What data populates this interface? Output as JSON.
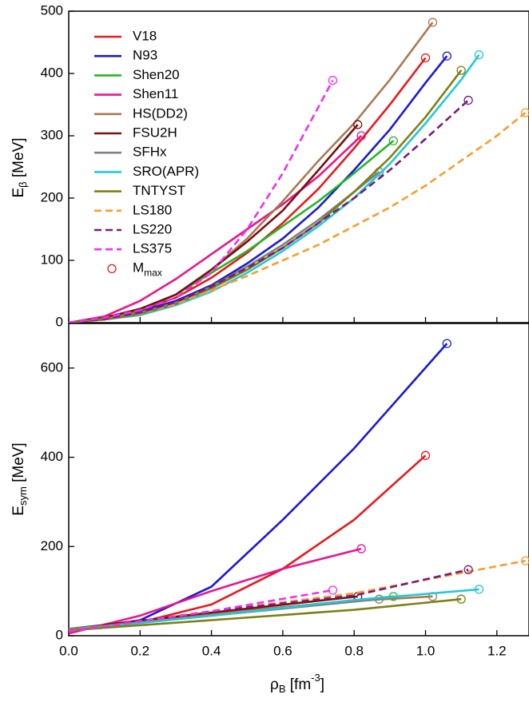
{
  "chart_data": [
    {
      "type": "line",
      "ylabel": "E",
      "ylabel_sub": "β",
      "ylabel_unit": " [MeV]",
      "xlim": [
        0,
        1.29
      ],
      "ylim": [
        0,
        500
      ],
      "yticks": [
        0,
        100,
        200,
        300,
        400,
        500
      ],
      "legend": "upper left",
      "marker_label": "M",
      "marker_label_sub": "max",
      "series": [
        {
          "name": "V18",
          "color": "#e8191b",
          "dashed": false,
          "x": [
            0,
            0.1,
            0.2,
            0.3,
            0.4,
            0.5,
            0.6,
            0.7,
            0.8,
            0.9,
            1.0
          ],
          "values": [
            0,
            8,
            20,
            40,
            72,
            112,
            160,
            215,
            280,
            350,
            425
          ]
        },
        {
          "name": "N93",
          "color": "#1a1ad6",
          "dashed": false,
          "x": [
            0,
            0.1,
            0.2,
            0.3,
            0.4,
            0.5,
            0.6,
            0.7,
            0.8,
            0.9,
            1.0,
            1.06
          ],
          "values": [
            0,
            8,
            18,
            35,
            60,
            95,
            135,
            185,
            245,
            310,
            385,
            428
          ]
        },
        {
          "name": "Shen20",
          "color": "#22b822",
          "dashed": false,
          "x": [
            0,
            0.1,
            0.2,
            0.3,
            0.4,
            0.5,
            0.6,
            0.7,
            0.8,
            0.91
          ],
          "values": [
            0,
            8,
            22,
            45,
            80,
            115,
            155,
            195,
            240,
            292
          ]
        },
        {
          "name": "Shen11",
          "color": "#e8168c",
          "dashed": false,
          "x": [
            0,
            0.1,
            0.2,
            0.3,
            0.4,
            0.5,
            0.6,
            0.7,
            0.82
          ],
          "values": [
            0,
            10,
            35,
            70,
            110,
            150,
            190,
            235,
            300
          ]
        },
        {
          "name": "HS(DD2)",
          "color": "#a87a52",
          "dashed": false,
          "x": [
            0,
            0.1,
            0.2,
            0.3,
            0.4,
            0.5,
            0.6,
            0.7,
            0.8,
            0.9,
            1.02
          ],
          "values": [
            0,
            8,
            20,
            45,
            85,
            135,
            195,
            260,
            320,
            390,
            482
          ]
        },
        {
          "name": "FSU2H",
          "color": "#7a0f0f",
          "dashed": false,
          "x": [
            0,
            0.1,
            0.2,
            0.3,
            0.4,
            0.5,
            0.6,
            0.7,
            0.81
          ],
          "values": [
            0,
            8,
            22,
            45,
            85,
            130,
            180,
            245,
            318
          ]
        },
        {
          "name": "SFHx",
          "color": "#808080",
          "dashed": false,
          "x": [
            0,
            0.1,
            0.2,
            0.3,
            0.4,
            0.5,
            0.6,
            0.7,
            0.8,
            0.87
          ],
          "values": [
            0,
            6,
            16,
            32,
            58,
            90,
            125,
            165,
            210,
            242
          ]
        },
        {
          "name": "SRO(APR)",
          "color": "#22c8d8",
          "dashed": false,
          "x": [
            0,
            0.1,
            0.2,
            0.3,
            0.4,
            0.5,
            0.6,
            0.7,
            0.8,
            0.9,
            1.0,
            1.1,
            1.15
          ],
          "values": [
            0,
            5,
            12,
            28,
            50,
            80,
            115,
            155,
            200,
            255,
            320,
            390,
            430
          ]
        },
        {
          "name": "TNTYST",
          "color": "#7f7f12",
          "dashed": false,
          "x": [
            0,
            0.1,
            0.2,
            0.3,
            0.4,
            0.5,
            0.6,
            0.7,
            0.8,
            0.9,
            1.0,
            1.1
          ],
          "values": [
            0,
            5,
            14,
            30,
            55,
            85,
            120,
            160,
            210,
            265,
            330,
            405
          ]
        },
        {
          "name": "LS180",
          "color": "#ff9a2a",
          "dashed": true,
          "x": [
            0,
            0.1,
            0.2,
            0.3,
            0.4,
            0.5,
            0.6,
            0.7,
            0.8,
            0.9,
            1.0,
            1.1,
            1.2,
            1.28
          ],
          "values": [
            0,
            6,
            15,
            30,
            52,
            75,
            100,
            125,
            155,
            185,
            220,
            260,
            300,
            337
          ]
        },
        {
          "name": "LS220",
          "color": "#7a1a7a",
          "dashed": true,
          "x": [
            0,
            0.1,
            0.2,
            0.3,
            0.4,
            0.5,
            0.6,
            0.7,
            0.8,
            0.9,
            1.0,
            1.12
          ],
          "values": [
            0,
            6,
            16,
            33,
            58,
            88,
            120,
            160,
            200,
            245,
            295,
            357
          ]
        },
        {
          "name": "LS375",
          "color": "#f030f0",
          "dashed": true,
          "x": [
            0,
            0.1,
            0.2,
            0.3,
            0.4,
            0.5,
            0.6,
            0.74
          ],
          "values": [
            0,
            8,
            20,
            40,
            80,
            150,
            240,
            389
          ]
        }
      ]
    },
    {
      "type": "line",
      "ylabel": "E",
      "ylabel_sub": "sym",
      "ylabel_unit": " [MeV]",
      "xlabel": "ρ",
      "xlabel_sub": "B",
      "xlabel_unit": " [fm",
      "xlabel_sup": "-3",
      "xlabel_end": "]",
      "xlim": [
        0,
        1.29
      ],
      "ylim": [
        0,
        700
      ],
      "yticks": [
        0,
        200,
        400,
        600
      ],
      "xticks": [
        {
          "value": 0,
          "label": "0.0"
        },
        0.2,
        0.4,
        0.6,
        0.8,
        {
          "value": 1,
          "label": "1.0"
        },
        1.2
      ],
      "series": [
        {
          "color": "#e8191b",
          "dashed": false,
          "x": [
            0,
            0.2,
            0.4,
            0.6,
            0.8,
            1.0
          ],
          "values": [
            12,
            30,
            70,
            150,
            260,
            404
          ]
        },
        {
          "color": "#1a1ad6",
          "dashed": false,
          "x": [
            0,
            0.2,
            0.4,
            0.6,
            0.8,
            1.06
          ],
          "values": [
            10,
            35,
            110,
            260,
            420,
            655
          ]
        },
        {
          "color": "#22b822",
          "dashed": false,
          "x": [
            0,
            0.4,
            0.91
          ],
          "values": [
            15,
            48,
            88
          ]
        },
        {
          "color": "#e8168c",
          "dashed": false,
          "x": [
            0,
            0.2,
            0.4,
            0.6,
            0.82
          ],
          "values": [
            5,
            45,
            100,
            150,
            195
          ]
        },
        {
          "color": "#a87a52",
          "dashed": false,
          "x": [
            0,
            0.4,
            0.8,
            1.02
          ],
          "values": [
            15,
            50,
            78,
            88
          ]
        },
        {
          "color": "#7a0f0f",
          "dashed": false,
          "x": [
            0,
            0.4,
            0.81
          ],
          "values": [
            15,
            52,
            88
          ]
        },
        {
          "color": "#808080",
          "dashed": false,
          "x": [
            0,
            0.4,
            0.87
          ],
          "values": [
            15,
            45,
            82
          ]
        },
        {
          "color": "#22c8d8",
          "dashed": false,
          "x": [
            0,
            0.4,
            0.8,
            1.15
          ],
          "values": [
            12,
            45,
            80,
            104
          ]
        },
        {
          "color": "#7f7f12",
          "dashed": false,
          "x": [
            0,
            0.4,
            0.8,
            1.1
          ],
          "values": [
            12,
            35,
            58,
            82
          ]
        },
        {
          "color": "#ff9a2a",
          "dashed": true,
          "x": [
            0,
            0.4,
            0.8,
            1.28
          ],
          "values": [
            10,
            55,
            95,
            168
          ]
        },
        {
          "color": "#7a1a7a",
          "dashed": true,
          "x": [
            0,
            0.4,
            0.8,
            1.12
          ],
          "values": [
            10,
            55,
            90,
            148
          ]
        },
        {
          "color": "#f030f0",
          "dashed": true,
          "x": [
            0,
            0.4,
            0.74
          ],
          "values": [
            10,
            55,
            102
          ]
        }
      ]
    }
  ]
}
